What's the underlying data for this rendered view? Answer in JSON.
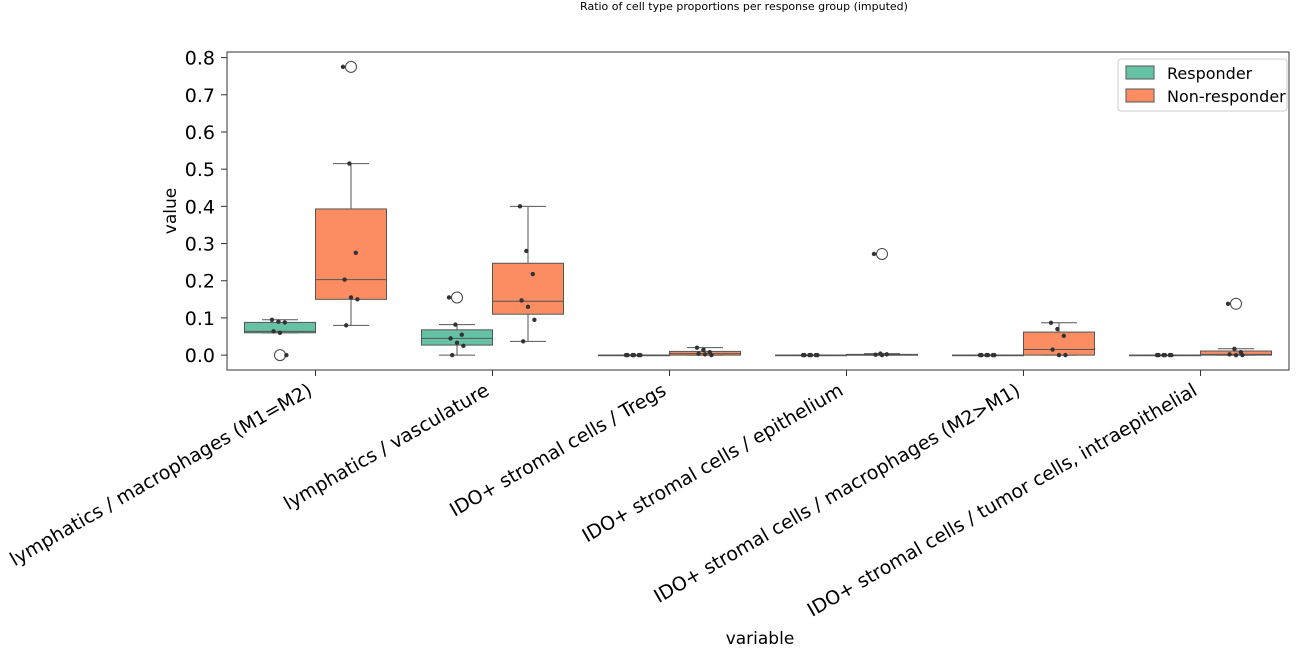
{
  "chart_data": {
    "type": "box",
    "title": "Ratio of cell type proportions per response group (imputed)",
    "xlabel": "variable",
    "ylabel": "value",
    "ylim": [
      -0.04,
      0.815
    ],
    "yticks": [
      0.0,
      0.1,
      0.2,
      0.3,
      0.4,
      0.5,
      0.6,
      0.7,
      0.8
    ],
    "ytick_labels": [
      "0.0",
      "0.1",
      "0.2",
      "0.3",
      "0.4",
      "0.5",
      "0.6",
      "0.7",
      "0.8"
    ],
    "grid": false,
    "legend_position": "top-right",
    "categories": [
      "lymphatics / macrophages (M1=M2)",
      "lymphatics / vasculature",
      "IDO+ stromal cells / Tregs",
      "IDO+ stromal cells / epithelium",
      "IDO+ stromal cells / macrophages (M2>M1)",
      "IDO+ stromal cells / tumor cells, intraepithelial"
    ],
    "series": [
      {
        "name": "Responder",
        "color": "#66c2a5",
        "boxes": [
          {
            "q1": 0.06,
            "median": 0.064,
            "q3": 0.088,
            "whisker_low": 0.06,
            "whisker_high": 0.095,
            "outliers": [
              0.0
            ],
            "points": [
              0.095,
              0.09,
              0.088,
              0.064,
              0.06,
              0.0
            ]
          },
          {
            "q1": 0.027,
            "median": 0.045,
            "q3": 0.068,
            "whisker_low": 0.0,
            "whisker_high": 0.082,
            "outliers": [
              0.155
            ],
            "points": [
              0.155,
              0.082,
              0.055,
              0.045,
              0.033,
              0.025,
              0.0
            ]
          },
          {
            "q1": 0.0,
            "median": 0.0,
            "q3": 0.0,
            "whisker_low": 0.0,
            "whisker_high": 0.0,
            "outliers": [],
            "points": [
              0.0,
              0.0,
              0.0,
              0.0,
              0.0,
              0.0
            ]
          },
          {
            "q1": 0.0,
            "median": 0.0,
            "q3": 0.0,
            "whisker_low": 0.0,
            "whisker_high": 0.0,
            "outliers": [],
            "points": [
              0.0,
              0.0,
              0.0,
              0.0,
              0.0,
              0.0
            ]
          },
          {
            "q1": 0.0,
            "median": 0.0,
            "q3": 0.0,
            "whisker_low": 0.0,
            "whisker_high": 0.0,
            "outliers": [],
            "points": [
              0.0,
              0.0,
              0.0,
              0.0,
              0.0,
              0.0
            ]
          },
          {
            "q1": 0.0,
            "median": 0.0,
            "q3": 0.0,
            "whisker_low": 0.0,
            "whisker_high": 0.0,
            "outliers": [],
            "points": [
              0.0,
              0.0,
              0.0,
              0.0,
              0.0,
              0.0
            ]
          }
        ]
      },
      {
        "name": "Non-responder",
        "color": "#fc8d62",
        "boxes": [
          {
            "q1": 0.15,
            "median": 0.203,
            "q3": 0.393,
            "whisker_low": 0.08,
            "whisker_high": 0.515,
            "outliers": [
              0.775
            ],
            "points": [
              0.775,
              0.515,
              0.275,
              0.203,
              0.155,
              0.15,
              0.08
            ]
          },
          {
            "q1": 0.11,
            "median": 0.145,
            "q3": 0.247,
            "whisker_low": 0.037,
            "whisker_high": 0.4,
            "outliers": [],
            "points": [
              0.4,
              0.28,
              0.218,
              0.147,
              0.13,
              0.095,
              0.037
            ]
          },
          {
            "q1": 0.0,
            "median": 0.004,
            "q3": 0.01,
            "whisker_low": 0.0,
            "whisker_high": 0.02,
            "outliers": [],
            "points": [
              0.02,
              0.014,
              0.008,
              0.004,
              0.002,
              0.0
            ]
          },
          {
            "q1": 0.0,
            "median": 0.0,
            "q3": 0.002,
            "whisker_low": 0.0,
            "whisker_high": 0.004,
            "outliers": [
              0.272
            ],
            "points": [
              0.272,
              0.004,
              0.002,
              0.001,
              0.0
            ]
          },
          {
            "q1": 0.0,
            "median": 0.015,
            "q3": 0.062,
            "whisker_low": 0.0,
            "whisker_high": 0.087,
            "outliers": [],
            "points": [
              0.087,
              0.07,
              0.052,
              0.015,
              0.0,
              0.0
            ]
          },
          {
            "q1": 0.0,
            "median": 0.002,
            "q3": 0.011,
            "whisker_low": 0.0,
            "whisker_high": 0.017,
            "outliers": [
              0.138
            ],
            "points": [
              0.138,
              0.017,
              0.008,
              0.002,
              0.0,
              0.0
            ]
          }
        ]
      }
    ]
  }
}
